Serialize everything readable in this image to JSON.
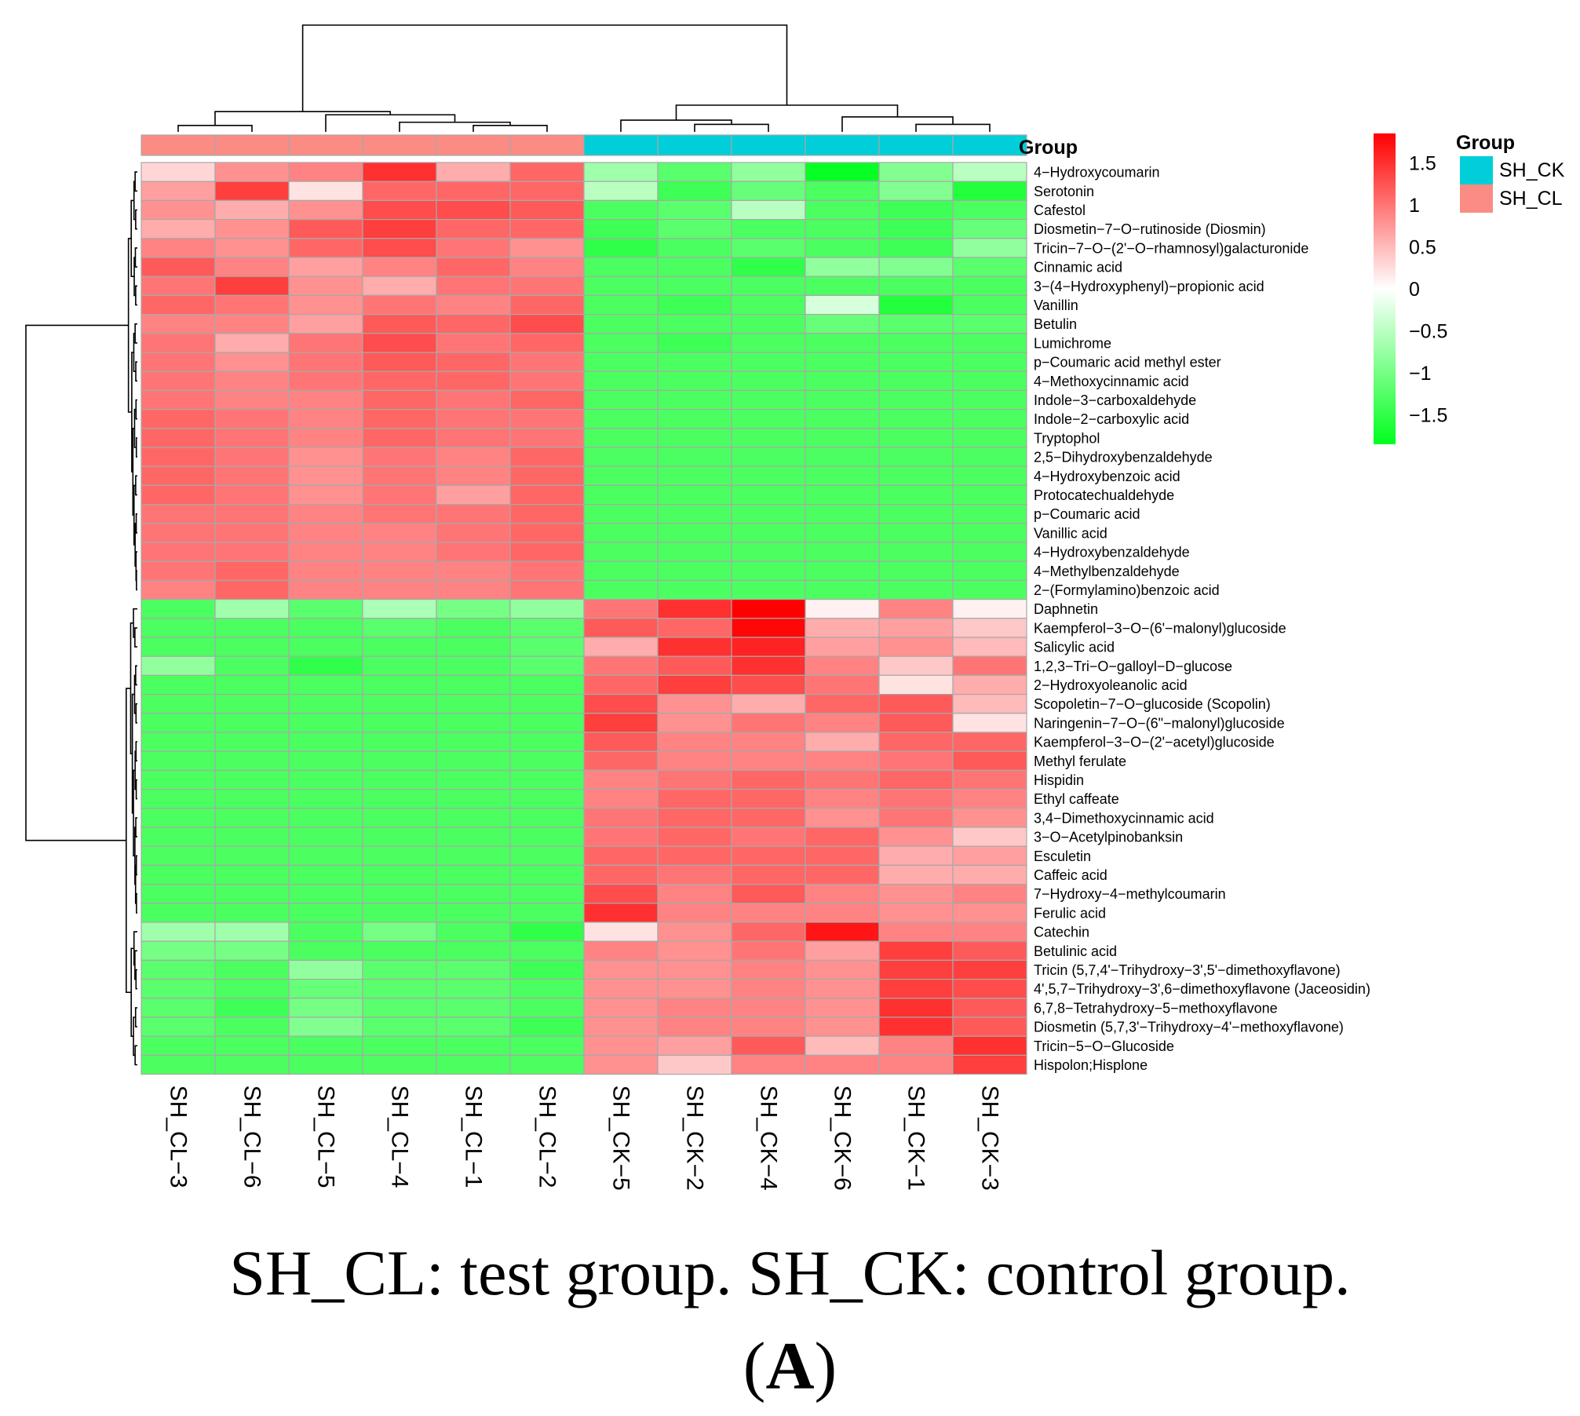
{
  "chart_data": {
    "type": "heatmap",
    "title": "",
    "legend": {
      "title": "Group",
      "entries": [
        {
          "name": "SH_CK",
          "color": "#00CED9"
        },
        {
          "name": "SH_CL",
          "color": "#FA8C84"
        }
      ]
    },
    "annotation_label": "Group",
    "color_scale": {
      "min": -1.85,
      "max": 1.85,
      "ticks": [
        "1.5",
        "1",
        "0.5",
        "0",
        "−0.5",
        "−1",
        "−1.5"
      ],
      "tick_values": [
        1.5,
        1,
        0.5,
        0,
        -0.5,
        -1,
        -1.5
      ],
      "low_color": "#00FF1E",
      "mid_color": "#FFFFFF",
      "high_color": "#FF0000"
    },
    "columns": [
      "SH_CL−3",
      "SH_CL−6",
      "SH_CL−5",
      "SH_CL−4",
      "SH_CL−1",
      "SH_CL−2",
      "SH_CK−5",
      "SH_CK−2",
      "SH_CK−4",
      "SH_CK−6",
      "SH_CK−1",
      "SH_CK−3"
    ],
    "column_groups": [
      "SH_CL",
      "SH_CL",
      "SH_CL",
      "SH_CL",
      "SH_CL",
      "SH_CL",
      "SH_CK",
      "SH_CK",
      "SH_CK",
      "SH_CK",
      "SH_CK",
      "SH_CK"
    ],
    "rows": [
      "4−Hydroxycoumarin",
      "Serotonin",
      "Cafestol",
      "Diosmetin−7−O−rutinoside (Diosmin)",
      "Tricin−7−O−(2'−O−rhamnosyl)galacturonide",
      "Cinnamic acid",
      "3−(4−Hydroxyphenyl)−propionic acid",
      "Vanillin",
      "Betulin",
      "Lumichrome",
      "p−Coumaric acid methyl ester",
      "4−Methoxycinnamic acid",
      "Indole−3−carboxaldehyde",
      "Indole−2−carboxylic acid",
      "Tryptophol",
      "2,5−Dihydroxybenzaldehyde",
      "4−Hydroxybenzoic acid",
      "Protocatechualdehyde",
      "p−Coumaric acid",
      "Vanillic acid",
      "4−Hydroxybenzaldehyde",
      "4−Methylbenzaldehyde",
      "2−(Formylamino)benzoic acid",
      "Daphnetin",
      "Kaempferol−3−O−(6'−malonyl)glucoside",
      "Salicylic acid",
      "1,2,3−Tri−O−galloyl−D−glucose",
      "2−Hydroxyoleanolic acid",
      "Scopoletin−7−O−glucoside (Scopolin)",
      "Naringenin−7−O−(6\"−malonyl)glucoside",
      "Kaempferol−3−O−(2'−acetyl)glucoside",
      "Methyl ferulate",
      "Hispidin",
      "Ethyl caffeate",
      "3,4−Dimethoxycinnamic acid",
      "3−O−Acetylpinobanksin",
      "Esculetin",
      "Caffeic acid",
      "7−Hydroxy−4−methylcoumarin",
      "Ferulic acid",
      "Catechin",
      "Betulinic acid",
      "Tricin (5,7,4'−Trihydroxy−3',5'−dimethoxyflavone)",
      "4',5,7−Trihydroxy−3',6−dimethoxyflavone (Jaceosidin)",
      "6,7,8−Tetrahydroxy−5−methoxyflavone",
      "Diosmetin (5,7,3'−Trihydroxy−4'−methoxyflavone)",
      "Tricin−5−O−Glucoside",
      "Hispolon;Hisplone"
    ],
    "values": [
      [
        0.3,
        0.8,
        0.9,
        1.5,
        0.6,
        1.1,
        -0.7,
        -1.2,
        -0.8,
        -1.8,
        -0.9,
        -0.5
      ],
      [
        0.7,
        1.4,
        0.2,
        1.1,
        1.1,
        1.1,
        -0.5,
        -1.4,
        -1.1,
        -1.3,
        -0.9,
        -1.6
      ],
      [
        0.8,
        0.6,
        0.8,
        1.3,
        1.3,
        1.2,
        -1.3,
        -1.2,
        -0.5,
        -1.3,
        -1.4,
        -1.3
      ],
      [
        0.6,
        0.8,
        1.2,
        1.4,
        1.1,
        1.1,
        -1.4,
        -1.2,
        -1.3,
        -1.3,
        -1.4,
        -1.1
      ],
      [
        0.9,
        0.8,
        1.1,
        1.3,
        1.0,
        0.8,
        -1.5,
        -1.3,
        -1.2,
        -1.3,
        -1.4,
        -0.8
      ],
      [
        1.2,
        0.9,
        0.7,
        0.9,
        1.1,
        0.9,
        -1.3,
        -1.3,
        -1.5,
        -0.8,
        -0.9,
        -1.2
      ],
      [
        1.0,
        1.4,
        0.8,
        0.6,
        1.0,
        1.0,
        -1.3,
        -1.3,
        -1.3,
        -1.3,
        -1.3,
        -1.3
      ],
      [
        1.1,
        1.0,
        0.8,
        1.0,
        0.9,
        1.1,
        -1.3,
        -1.4,
        -1.3,
        -0.3,
        -1.6,
        -1.3
      ],
      [
        0.9,
        0.9,
        0.7,
        1.2,
        1.1,
        1.3,
        -1.3,
        -1.3,
        -1.3,
        -1.1,
        -1.2,
        -1.2
      ],
      [
        1.0,
        0.6,
        1.0,
        1.3,
        1.0,
        1.1,
        -1.3,
        -1.4,
        -1.3,
        -1.3,
        -1.3,
        -1.3
      ],
      [
        1.0,
        0.8,
        1.0,
        1.2,
        1.1,
        1.0,
        -1.3,
        -1.3,
        -1.3,
        -1.3,
        -1.3,
        -1.3
      ],
      [
        1.0,
        0.9,
        1.0,
        1.1,
        1.1,
        1.0,
        -1.3,
        -1.3,
        -1.3,
        -1.3,
        -1.3,
        -1.3
      ],
      [
        1.0,
        0.9,
        0.9,
        1.1,
        1.0,
        1.1,
        -1.3,
        -1.3,
        -1.3,
        -1.3,
        -1.3,
        -1.3
      ],
      [
        1.1,
        1.0,
        0.9,
        1.1,
        1.0,
        1.0,
        -1.3,
        -1.3,
        -1.3,
        -1.3,
        -1.3,
        -1.3
      ],
      [
        1.1,
        1.0,
        0.9,
        1.1,
        1.0,
        1.0,
        -1.3,
        -1.3,
        -1.3,
        -1.3,
        -1.3,
        -1.3
      ],
      [
        1.1,
        1.0,
        0.8,
        1.0,
        0.9,
        1.1,
        -1.3,
        -1.3,
        -1.3,
        -1.3,
        -1.3,
        -1.3
      ],
      [
        1.1,
        1.0,
        0.8,
        1.0,
        0.9,
        1.1,
        -1.3,
        -1.3,
        -1.3,
        -1.3,
        -1.3,
        -1.3
      ],
      [
        1.1,
        1.0,
        0.8,
        1.0,
        0.7,
        1.1,
        -1.3,
        -1.3,
        -1.3,
        -1.3,
        -1.3,
        -1.3
      ],
      [
        1.0,
        1.0,
        0.9,
        1.0,
        1.0,
        1.1,
        -1.3,
        -1.3,
        -1.3,
        -1.3,
        -1.3,
        -1.3
      ],
      [
        1.0,
        1.0,
        0.9,
        0.9,
        1.0,
        1.1,
        -1.3,
        -1.3,
        -1.3,
        -1.3,
        -1.3,
        -1.3
      ],
      [
        1.0,
        1.0,
        0.9,
        0.9,
        1.0,
        1.1,
        -1.3,
        -1.3,
        -1.3,
        -1.3,
        -1.3,
        -1.3
      ],
      [
        1.0,
        1.1,
        0.9,
        0.9,
        0.9,
        1.0,
        -1.3,
        -1.3,
        -1.3,
        -1.3,
        -1.3,
        -1.3
      ],
      [
        0.9,
        1.1,
        0.9,
        0.9,
        0.9,
        1.0,
        -1.3,
        -1.3,
        -1.3,
        -1.3,
        -1.3,
        -1.3
      ],
      [
        -1.3,
        -0.7,
        -1.2,
        -0.6,
        -1.0,
        -0.8,
        1.0,
        1.5,
        1.9,
        0.1,
        0.9,
        0.1
      ],
      [
        -1.3,
        -1.3,
        -1.3,
        -1.2,
        -1.3,
        -1.2,
        1.2,
        1.1,
        1.8,
        0.6,
        0.7,
        0.4
      ],
      [
        -1.3,
        -1.3,
        -1.3,
        -1.3,
        -1.3,
        -1.2,
        0.6,
        1.5,
        1.6,
        0.7,
        0.8,
        0.5
      ],
      [
        -0.8,
        -1.3,
        -1.5,
        -1.3,
        -1.3,
        -1.2,
        1.0,
        1.2,
        1.5,
        0.9,
        0.4,
        1.0
      ],
      [
        -1.3,
        -1.3,
        -1.3,
        -1.3,
        -1.3,
        -1.3,
        1.1,
        1.4,
        1.3,
        1.0,
        0.2,
        0.6
      ],
      [
        -1.3,
        -1.3,
        -1.3,
        -1.3,
        -1.3,
        -1.3,
        1.3,
        0.8,
        0.6,
        1.1,
        1.2,
        0.5
      ],
      [
        -1.3,
        -1.3,
        -1.3,
        -1.3,
        -1.3,
        -1.3,
        1.4,
        0.8,
        1.0,
        0.9,
        1.2,
        0.2
      ],
      [
        -1.3,
        -1.3,
        -1.3,
        -1.3,
        -1.3,
        -1.3,
        1.2,
        0.9,
        0.9,
        0.6,
        1.1,
        1.1
      ],
      [
        -1.3,
        -1.3,
        -1.3,
        -1.3,
        -1.3,
        -1.3,
        1.1,
        0.9,
        0.9,
        0.9,
        1.0,
        1.2
      ],
      [
        -1.3,
        -1.3,
        -1.3,
        -1.3,
        -1.3,
        -1.3,
        0.9,
        1.0,
        1.1,
        1.0,
        1.1,
        1.0
      ],
      [
        -1.3,
        -1.3,
        -1.3,
        -1.3,
        -1.3,
        -1.3,
        0.9,
        1.1,
        1.1,
        0.9,
        1.0,
        0.9
      ],
      [
        -1.3,
        -1.3,
        -1.3,
        -1.3,
        -1.3,
        -1.3,
        1.0,
        1.1,
        1.1,
        0.8,
        1.0,
        0.8
      ],
      [
        -1.3,
        -1.3,
        -1.3,
        -1.3,
        -1.3,
        -1.3,
        1.0,
        1.1,
        1.0,
        1.1,
        0.8,
        0.4
      ],
      [
        -1.3,
        -1.3,
        -1.3,
        -1.3,
        -1.3,
        -1.3,
        1.1,
        1.1,
        1.1,
        1.1,
        0.6,
        0.7
      ],
      [
        -1.3,
        -1.3,
        -1.3,
        -1.3,
        -1.3,
        -1.3,
        1.1,
        1.0,
        1.1,
        1.1,
        0.6,
        0.6
      ],
      [
        -1.3,
        -1.3,
        -1.3,
        -1.3,
        -1.3,
        -1.3,
        1.3,
        0.9,
        1.2,
        0.9,
        0.8,
        0.9
      ],
      [
        -1.3,
        -1.3,
        -1.3,
        -1.3,
        -1.3,
        -1.3,
        1.5,
        0.9,
        0.9,
        0.9,
        0.8,
        0.8
      ],
      [
        -0.7,
        -0.7,
        -1.3,
        -1.0,
        -1.3,
        -1.5,
        0.2,
        0.8,
        1.1,
        1.7,
        0.9,
        0.9
      ],
      [
        -1.0,
        -1.0,
        -1.3,
        -1.3,
        -1.3,
        -1.3,
        0.9,
        0.8,
        1.0,
        0.7,
        1.4,
        1.2
      ],
      [
        -1.2,
        -1.3,
        -0.8,
        -1.2,
        -1.2,
        -1.4,
        0.8,
        0.8,
        0.9,
        0.8,
        1.4,
        1.4
      ],
      [
        -1.2,
        -1.3,
        -1.1,
        -1.2,
        -1.2,
        -1.3,
        0.8,
        0.8,
        0.9,
        0.8,
        1.4,
        1.3
      ],
      [
        -1.2,
        -1.4,
        -1.0,
        -1.2,
        -1.2,
        -1.3,
        0.8,
        0.9,
        0.9,
        0.8,
        1.5,
        1.2
      ],
      [
        -1.2,
        -1.3,
        -0.9,
        -1.2,
        -1.2,
        -1.4,
        0.8,
        0.9,
        0.9,
        0.8,
        1.5,
        1.2
      ],
      [
        -1.3,
        -1.3,
        -1.3,
        -1.3,
        -1.3,
        -1.3,
        0.8,
        0.7,
        1.2,
        0.5,
        0.9,
        1.5
      ],
      [
        -1.3,
        -1.3,
        -1.3,
        -1.3,
        -1.3,
        -1.3,
        0.8,
        0.4,
        0.9,
        0.9,
        0.9,
        1.4
      ]
    ]
  },
  "caption": {
    "text": "SH_CL: test group. SH_CK: control group.",
    "label_open": "(",
    "label_bold": "A",
    "label_close": ")"
  }
}
